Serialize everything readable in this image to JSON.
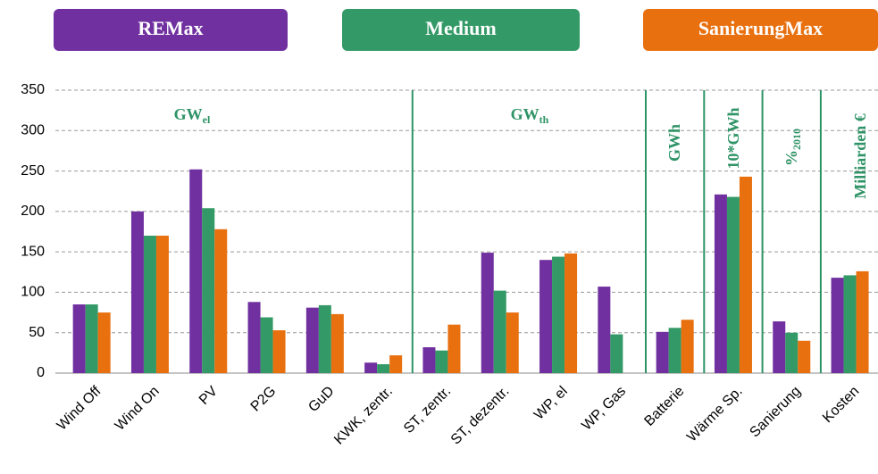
{
  "chart_data": {
    "type": "bar",
    "categories": [
      "Wind Off",
      "Wind On",
      "PV",
      "P2G",
      "GuD",
      "KWK, zentr.",
      "ST, zentr.",
      "ST, dezentr.",
      "WP, el",
      "WP, Gas",
      "Batterie",
      "Wärme Sp.",
      "Sanierung",
      "Kosten"
    ],
    "series": [
      {
        "name": "REMax",
        "color": "#7030a0",
        "values": [
          85,
          200,
          252,
          88,
          81,
          13,
          32,
          149,
          140,
          107,
          51,
          221,
          64,
          118
        ]
      },
      {
        "name": "Medium",
        "color": "#339966",
        "values": [
          85,
          170,
          204,
          69,
          84,
          11,
          28,
          102,
          144,
          48,
          56,
          218,
          50,
          121
        ]
      },
      {
        "name": "SanierungMax",
        "color": "#e8700f",
        "values": [
          75,
          170,
          178,
          53,
          73,
          22,
          60,
          75,
          148,
          null,
          66,
          243,
          40,
          126
        ]
      }
    ],
    "annotations": [
      {
        "text": "GW",
        "sub": "el"
      },
      {
        "text": "GW",
        "sub": "th"
      },
      {
        "text": "GWh"
      },
      {
        "text": "10*GWh"
      },
      {
        "text": "%",
        "sub": "2010"
      },
      {
        "text": "Milliarden €"
      }
    ],
    "ylim": [
      0,
      350
    ],
    "yticks": [
      0,
      50,
      100,
      150,
      200,
      250,
      300,
      350
    ],
    "grid": true
  }
}
